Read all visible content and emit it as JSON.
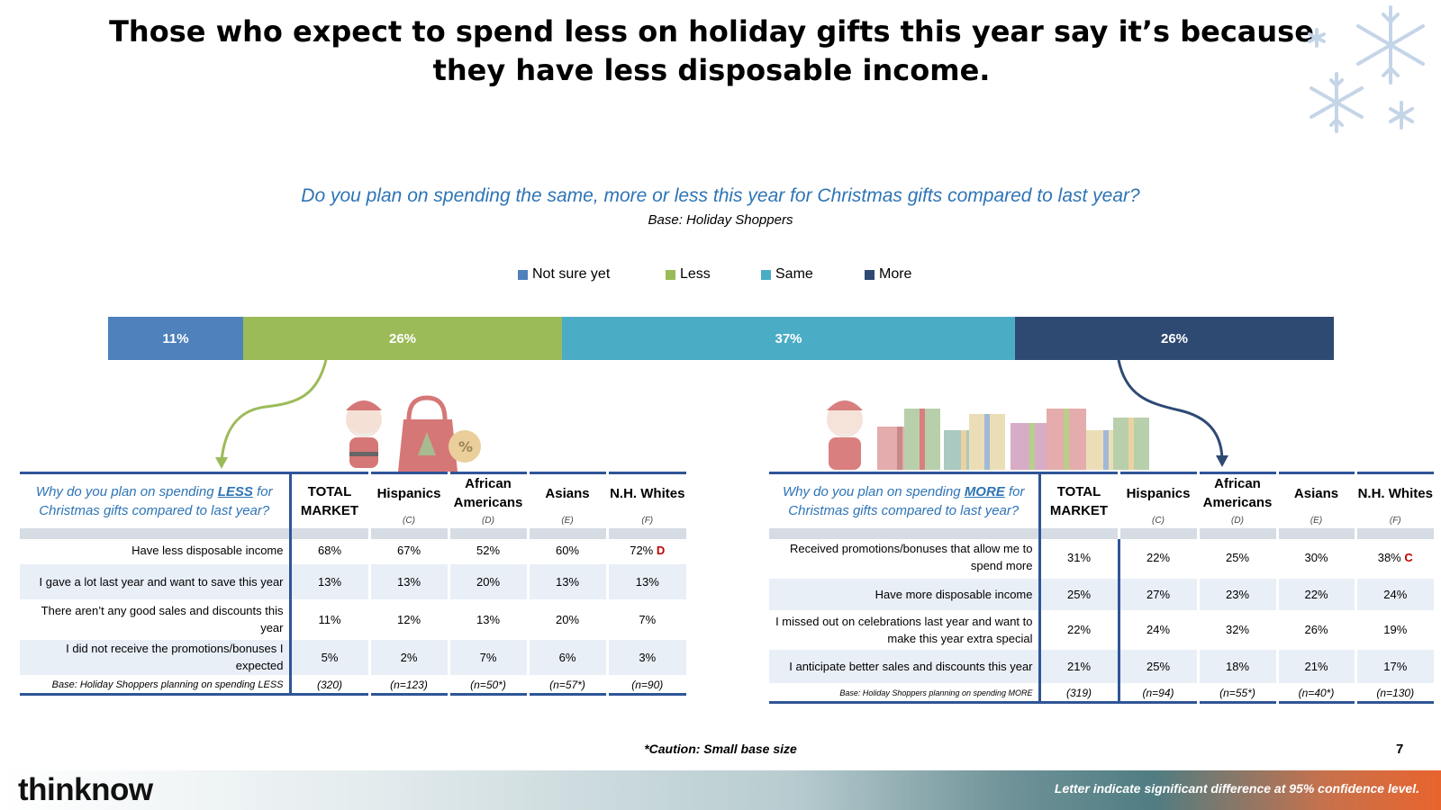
{
  "title": "Those who expect to spend less on holiday gifts this year say it’s because they have less disposable income.",
  "question": "Do you plan on spending the same, more or less this year for Christmas gifts compared to last year?",
  "base": "Base: Holiday Shoppers",
  "colors": {
    "not_sure": "#4F81BD",
    "less": "#9BBB59",
    "same": "#4BACC6",
    "more": "#2E4A73",
    "question_blue": "#2E74B5",
    "sig_red": "#C00000"
  },
  "chart_data": {
    "type": "bar",
    "orientation": "horizontal-stacked",
    "categories": [
      "Holiday Shoppers"
    ],
    "series": [
      {
        "name": "Not sure yet",
        "values": [
          11
        ],
        "label": "11%"
      },
      {
        "name": "Less",
        "values": [
          26
        ],
        "label": "26%"
      },
      {
        "name": "Same",
        "values": [
          37
        ],
        "label": "37%"
      },
      {
        "name": "More",
        "values": [
          26
        ],
        "label": "26%"
      }
    ],
    "legend": [
      "Not sure yet",
      "Less",
      "Same",
      "More"
    ],
    "legend_position": "top"
  },
  "less_table": {
    "question_pre": "Why do you plan on spending ",
    "question_key": "LESS",
    "question_post": " for Christmas gifts compared to last year?",
    "headers": [
      "TOTAL MARKET",
      "Hispanics",
      "African Americans",
      "Asians",
      "N.H. Whites"
    ],
    "letters": [
      "(C)",
      "(D)",
      "(E)",
      "(F)"
    ],
    "rows": [
      {
        "label": "Have less disposable income",
        "values": [
          "68%",
          "67%",
          "52%",
          "60%",
          "72%"
        ],
        "sig": "D"
      },
      {
        "label": "I gave a lot last year and want to save this year",
        "values": [
          "13%",
          "13%",
          "20%",
          "13%",
          "13%"
        ],
        "sig": ""
      },
      {
        "label": "There aren’t any good sales and discounts this year",
        "values": [
          "11%",
          "12%",
          "13%",
          "20%",
          "7%"
        ],
        "sig": ""
      },
      {
        "label": "I did not receive the promotions/bonuses I expected",
        "values": [
          "5%",
          "2%",
          "7%",
          "6%",
          "3%"
        ],
        "sig": ""
      }
    ],
    "base_label": "Base: Holiday Shoppers planning on spending LESS",
    "base_values": [
      "(320)",
      "(n=123)",
      "(n=50*)",
      "(n=57*)",
      "(n=90)"
    ]
  },
  "more_table": {
    "question_pre": "Why do you plan on spending ",
    "question_key": "MORE",
    "question_post": " for Christmas gifts compared to last year?",
    "headers": [
      "TOTAL MARKET",
      "Hispanics",
      "African Americans",
      "Asians",
      "N.H. Whites"
    ],
    "letters": [
      "(C)",
      "(D)",
      "(E)",
      "(F)"
    ],
    "rows": [
      {
        "label": "Received promotions/bonuses that allow me to spend more",
        "values": [
          "31%",
          "22%",
          "25%",
          "30%",
          "38%"
        ],
        "sig": "C"
      },
      {
        "label": "Have more disposable income",
        "values": [
          "25%",
          "27%",
          "23%",
          "22%",
          "24%"
        ],
        "sig": ""
      },
      {
        "label": "I missed out on celebrations last year and want to make this year extra special",
        "values": [
          "22%",
          "24%",
          "32%",
          "26%",
          "19%"
        ],
        "sig": ""
      },
      {
        "label": "I anticipate better sales and discounts this year",
        "values": [
          "21%",
          "25%",
          "18%",
          "21%",
          "17%"
        ],
        "sig": ""
      }
    ],
    "base_label": "Base: Holiday Shoppers planning on spending MORE",
    "base_values": [
      "(319)",
      "(n=94)",
      "(n=55*)",
      "(n=40*)",
      "(n=130)"
    ]
  },
  "caution": "*Caution: Small base size",
  "page_number": "7",
  "logo_text": "thinknow",
  "footnote": "Letter indicate significant difference at 95% confidence level."
}
